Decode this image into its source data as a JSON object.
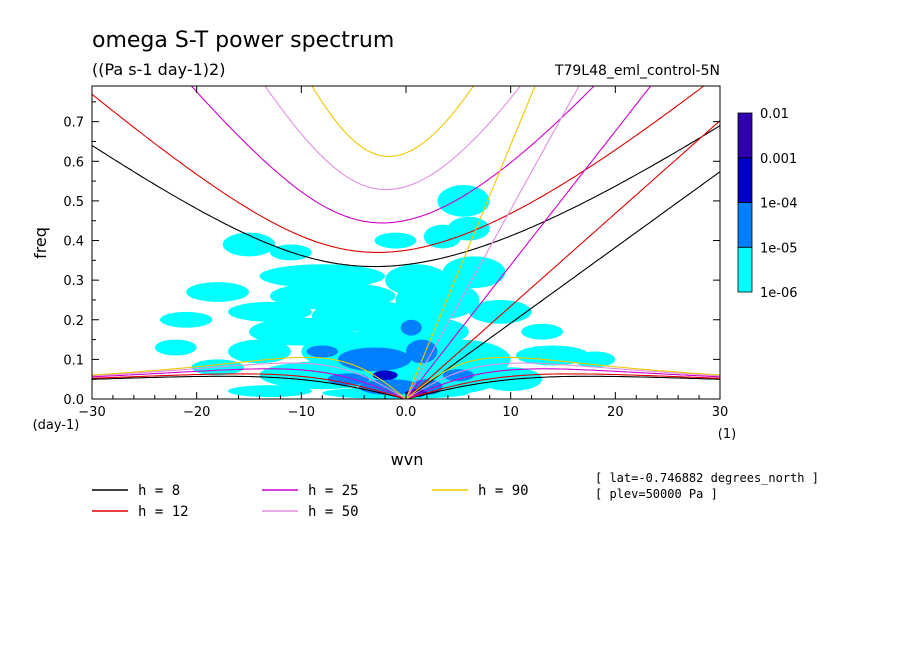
{
  "chart_data": {
    "type": "heatmap",
    "title": "omega S-T power spectrum",
    "subtitle": "((Pa s-1 day-1)2)",
    "run_label": "T79L48_eml_control-5N",
    "xlabel": "wvn",
    "ylabel": "freq",
    "x_unit": "(1)",
    "y_unit": "(day-1)",
    "xlim": [
      -30,
      30
    ],
    "ylim": [
      0,
      0.79
    ],
    "x_ticks": [
      -30,
      -20,
      -10,
      0,
      10,
      20,
      30
    ],
    "x_tick_labels": [
      "−30",
      "−20",
      "−10",
      "0.0",
      "10",
      "20",
      "30"
    ],
    "y_ticks": [
      0.0,
      0.1,
      0.2,
      0.3,
      0.4,
      0.5,
      0.6,
      0.7
    ],
    "y_tick_labels": [
      "0.0",
      "0.1",
      "0.2",
      "0.3",
      "0.4",
      "0.5",
      "0.6",
      "0.7"
    ],
    "colorbar": {
      "levels": [
        "1e-06",
        "1e-05",
        "1e-04",
        "0.001",
        "0.01"
      ],
      "colors": [
        "#00ffff",
        "#0080ff",
        "#0000c8",
        "#3000b0"
      ]
    },
    "power_blobs": [
      {
        "level": 0,
        "x": 5.5,
        "y": 0.5,
        "rx": 2.5,
        "ry": 0.04
      },
      {
        "level": 0,
        "x": 6.0,
        "y": 0.43,
        "rx": 2.0,
        "ry": 0.03
      },
      {
        "level": 0,
        "x": 3.5,
        "y": 0.41,
        "rx": 1.8,
        "ry": 0.03
      },
      {
        "level": 0,
        "x": -1.0,
        "y": 0.4,
        "rx": 2.0,
        "ry": 0.02
      },
      {
        "level": 0,
        "x": -15.0,
        "y": 0.39,
        "rx": 2.5,
        "ry": 0.03
      },
      {
        "level": 0,
        "x": -11.0,
        "y": 0.37,
        "rx": 2.0,
        "ry": 0.02
      },
      {
        "level": 0,
        "x": 6.5,
        "y": 0.32,
        "rx": 3.0,
        "ry": 0.04
      },
      {
        "level": 0,
        "x": -8.0,
        "y": 0.31,
        "rx": 6.0,
        "ry": 0.03
      },
      {
        "level": 0,
        "x": 1.0,
        "y": 0.3,
        "rx": 3.0,
        "ry": 0.04
      },
      {
        "level": 0,
        "x": -18.0,
        "y": 0.27,
        "rx": 3.0,
        "ry": 0.025
      },
      {
        "level": 0,
        "x": -7.0,
        "y": 0.26,
        "rx": 6.0,
        "ry": 0.035
      },
      {
        "level": 0,
        "x": 3.0,
        "y": 0.25,
        "rx": 4.0,
        "ry": 0.05
      },
      {
        "level": 0,
        "x": -13.0,
        "y": 0.22,
        "rx": 4.0,
        "ry": 0.025
      },
      {
        "level": 0,
        "x": -4.0,
        "y": 0.21,
        "rx": 5.0,
        "ry": 0.04
      },
      {
        "level": 0,
        "x": -21.0,
        "y": 0.2,
        "rx": 2.5,
        "ry": 0.02
      },
      {
        "level": 0,
        "x": 9.0,
        "y": 0.22,
        "rx": 3.0,
        "ry": 0.03
      },
      {
        "level": 0,
        "x": -10.0,
        "y": 0.17,
        "rx": 5.0,
        "ry": 0.035
      },
      {
        "level": 0,
        "x": 1.0,
        "y": 0.17,
        "rx": 5.0,
        "ry": 0.04
      },
      {
        "level": 0,
        "x": 13.0,
        "y": 0.17,
        "rx": 2.0,
        "ry": 0.02
      },
      {
        "level": 0,
        "x": -22.0,
        "y": 0.13,
        "rx": 2.0,
        "ry": 0.02
      },
      {
        "level": 0,
        "x": -14.0,
        "y": 0.12,
        "rx": 3.0,
        "ry": 0.03
      },
      {
        "level": 0,
        "x": -4.0,
        "y": 0.12,
        "rx": 6.0,
        "ry": 0.05
      },
      {
        "level": 0,
        "x": 5.0,
        "y": 0.1,
        "rx": 5.0,
        "ry": 0.05
      },
      {
        "level": 0,
        "x": 14.0,
        "y": 0.11,
        "rx": 3.5,
        "ry": 0.025
      },
      {
        "level": 0,
        "x": 18.0,
        "y": 0.1,
        "rx": 2.0,
        "ry": 0.02
      },
      {
        "level": 0,
        "x": -18.0,
        "y": 0.08,
        "rx": 2.5,
        "ry": 0.02
      },
      {
        "level": 0,
        "x": -8.0,
        "y": 0.06,
        "rx": 6.0,
        "ry": 0.035
      },
      {
        "level": 0,
        "x": 3.0,
        "y": 0.05,
        "rx": 6.0,
        "ry": 0.04
      },
      {
        "level": 0,
        "x": 10.0,
        "y": 0.05,
        "rx": 3.0,
        "ry": 0.03
      },
      {
        "level": 0,
        "x": -13.0,
        "y": 0.02,
        "rx": 4.0,
        "ry": 0.015
      },
      {
        "level": 0,
        "x": -1.0,
        "y": 0.015,
        "rx": 7.0,
        "ry": 0.015
      },
      {
        "level": 1,
        "x": -3.0,
        "y": 0.1,
        "rx": 3.5,
        "ry": 0.03
      },
      {
        "level": 1,
        "x": 1.5,
        "y": 0.12,
        "rx": 1.5,
        "ry": 0.03
      },
      {
        "level": 1,
        "x": -5.5,
        "y": 0.05,
        "rx": 2.0,
        "ry": 0.015
      },
      {
        "level": 1,
        "x": -1.5,
        "y": 0.03,
        "rx": 3.0,
        "ry": 0.02
      },
      {
        "level": 1,
        "x": 2.0,
        "y": 0.03,
        "rx": 1.5,
        "ry": 0.02
      },
      {
        "level": 1,
        "x": 0.5,
        "y": 0.18,
        "rx": 1.0,
        "ry": 0.02
      },
      {
        "level": 1,
        "x": -8.0,
        "y": 0.12,
        "rx": 1.5,
        "ry": 0.015
      },
      {
        "level": 1,
        "x": 5.0,
        "y": 0.06,
        "rx": 1.5,
        "ry": 0.015
      },
      {
        "level": 2,
        "x": -2.0,
        "y": 0.06,
        "rx": 1.2,
        "ry": 0.012
      },
      {
        "level": 2,
        "x": 1.0,
        "y": 0.015,
        "rx": 1.0,
        "ry": 0.01
      }
    ],
    "series": [
      {
        "name": "h =  8",
        "h": 8,
        "color": "#000000"
      },
      {
        "name": "h = 12",
        "h": 12,
        "color": "#e00000"
      },
      {
        "name": "h = 25",
        "h": 25,
        "color": "#d000d0"
      },
      {
        "name": "h = 50",
        "h": 50,
        "color": "#e090e0"
      },
      {
        "name": "h = 90",
        "h": 90,
        "color": "#f0c800"
      }
    ],
    "annotations": [
      "[ lat=-0.746882 degrees_north ]",
      "[ plev=50000 Pa ]"
    ]
  }
}
